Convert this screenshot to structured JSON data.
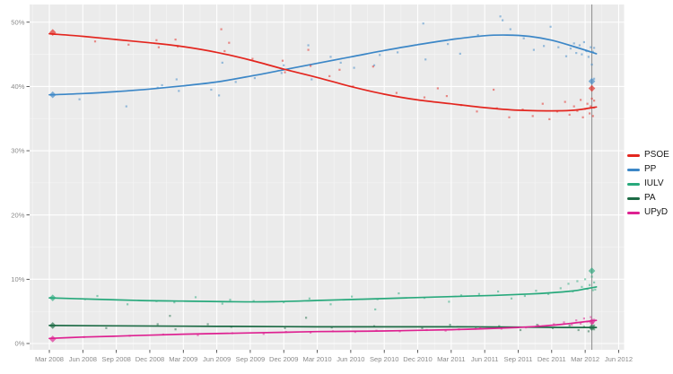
{
  "chart_data": {
    "type": "scatter",
    "smooth_trend": true,
    "title": "",
    "xlabel": "",
    "ylabel": "",
    "x_axis": {
      "tick_labels": [
        "Mar 2008",
        "Jun 2008",
        "Sep 2008",
        "Dec 2008",
        "Mar 2009",
        "Jun 2009",
        "Sep 2009",
        "Dec 2009",
        "Mar 2010",
        "Jun 2010",
        "Sep 2010",
        "Dec 2010",
        "Mar 2011",
        "Jun 2011",
        "Sep 2011",
        "Dec 2011",
        "Mar 2012",
        "Jun 2012"
      ],
      "tick_months": [
        0,
        3,
        6,
        9,
        12,
        15,
        18,
        21,
        24,
        27,
        30,
        33,
        36,
        39,
        42,
        45,
        48,
        51
      ],
      "months_per_tick": 3
    },
    "y_axis": {
      "tick_labels": [
        "0%",
        "10%",
        "20%",
        "30%",
        "40%",
        "50%"
      ],
      "tick_values": [
        0,
        10,
        20,
        30,
        40,
        50
      ],
      "ylim": [
        -1,
        52.8
      ]
    },
    "election_line_month": 48.6,
    "legend": {
      "position": "right",
      "entries": [
        {
          "label": "PSOE",
          "color": "#e3261f"
        },
        {
          "label": "PP",
          "color": "#3c87c7"
        },
        {
          "label": "IULV",
          "color": "#28a97c"
        },
        {
          "label": "PA",
          "color": "#1d6b45"
        },
        {
          "label": "UPyD",
          "color": "#de2191"
        }
      ]
    },
    "colors": {
      "panel_bg": "#ebebeb",
      "grid_major": "#ffffff",
      "grid_minor": "#ffffff",
      "tick_label": "#8a8a8a",
      "tick_mark": "#333333",
      "election_line": "#8c8c8c",
      "outer_bg": "#ffffff"
    },
    "series": [
      {
        "name": "PSOE",
        "color": "#e3261f",
        "trend": [
          [
            0,
            48.2
          ],
          [
            3,
            47.8
          ],
          [
            6,
            47.3
          ],
          [
            9,
            46.8
          ],
          [
            12,
            46.2
          ],
          [
            15,
            45.3
          ],
          [
            18,
            44.1
          ],
          [
            21,
            42.7
          ],
          [
            24,
            41.4
          ],
          [
            27,
            40.0
          ],
          [
            30,
            38.8
          ],
          [
            33,
            37.9
          ],
          [
            36,
            37.3
          ],
          [
            39,
            36.7
          ],
          [
            42,
            36.3
          ],
          [
            45,
            36.2
          ],
          [
            47,
            36.3
          ],
          [
            49,
            36.8
          ]
        ],
        "points": [
          [
            4.1,
            47.0
          ],
          [
            7.1,
            46.5
          ],
          [
            9.6,
            47.2
          ],
          [
            9.8,
            46.1
          ],
          [
            11.3,
            47.3
          ],
          [
            11.5,
            46.2
          ],
          [
            15.4,
            48.9
          ],
          [
            15.7,
            45.5
          ],
          [
            16.1,
            46.8
          ],
          [
            18.2,
            44.3
          ],
          [
            20.9,
            44.0
          ],
          [
            21.1,
            42.2
          ],
          [
            23.2,
            45.7
          ],
          [
            23.4,
            43.2
          ],
          [
            25.1,
            41.6
          ],
          [
            26.0,
            42.6
          ],
          [
            27.2,
            40.0
          ],
          [
            29.0,
            43.1
          ],
          [
            31.1,
            39.0
          ],
          [
            33.6,
            38.3
          ],
          [
            34.8,
            39.7
          ],
          [
            35.6,
            38.5
          ],
          [
            36.9,
            37.1
          ],
          [
            38.3,
            36.1
          ],
          [
            39.8,
            39.5
          ],
          [
            40.1,
            36.6
          ],
          [
            41.2,
            35.2
          ],
          [
            42.4,
            36.4
          ],
          [
            43.3,
            35.4
          ],
          [
            44.2,
            37.3
          ],
          [
            44.8,
            34.9
          ],
          [
            45.5,
            36.1
          ],
          [
            46.2,
            37.6
          ],
          [
            46.6,
            35.6
          ],
          [
            47.0,
            36.9
          ],
          [
            47.3,
            36.2
          ],
          [
            47.6,
            37.9
          ],
          [
            47.8,
            35.2
          ],
          [
            48.0,
            36.5
          ],
          [
            48.2,
            37.3
          ],
          [
            48.4,
            35.8
          ],
          [
            48.5,
            36.9
          ],
          [
            48.6,
            38.1
          ],
          [
            48.7,
            35.4
          ],
          [
            48.8,
            36.7
          ],
          [
            48.8,
            37.8
          ]
        ],
        "elections": [
          [
            0.3,
            48.4
          ],
          [
            48.6,
            39.7
          ]
        ]
      },
      {
        "name": "PP",
        "color": "#3c87c7",
        "trend": [
          [
            0,
            38.7
          ],
          [
            3,
            38.9
          ],
          [
            6,
            39.2
          ],
          [
            9,
            39.6
          ],
          [
            12,
            40.1
          ],
          [
            15,
            40.7
          ],
          [
            18,
            41.6
          ],
          [
            21,
            42.6
          ],
          [
            24,
            43.6
          ],
          [
            27,
            44.6
          ],
          [
            30,
            45.6
          ],
          [
            33,
            46.5
          ],
          [
            36,
            47.3
          ],
          [
            39,
            47.9
          ],
          [
            41,
            48.0
          ],
          [
            43,
            47.8
          ],
          [
            45,
            47.2
          ],
          [
            47,
            46.2
          ],
          [
            49,
            45.1
          ]
        ],
        "points": [
          [
            2.7,
            38.0
          ],
          [
            6.9,
            36.9
          ],
          [
            9.7,
            39.8
          ],
          [
            10.1,
            40.2
          ],
          [
            11.4,
            41.1
          ],
          [
            11.6,
            39.3
          ],
          [
            14.5,
            39.5
          ],
          [
            15.2,
            38.6
          ],
          [
            15.5,
            43.7
          ],
          [
            16.7,
            40.7
          ],
          [
            18.4,
            41.3
          ],
          [
            20.8,
            42.1
          ],
          [
            21.0,
            43.3
          ],
          [
            23.2,
            46.4
          ],
          [
            23.5,
            41.1
          ],
          [
            25.2,
            44.6
          ],
          [
            26.1,
            43.7
          ],
          [
            27.3,
            42.9
          ],
          [
            29.1,
            43.3
          ],
          [
            29.6,
            44.9
          ],
          [
            31.2,
            45.3
          ],
          [
            33.5,
            49.8
          ],
          [
            33.7,
            44.2
          ],
          [
            35.7,
            46.6
          ],
          [
            36.8,
            45.1
          ],
          [
            38.4,
            48.0
          ],
          [
            40.4,
            50.9
          ],
          [
            40.6,
            50.3
          ],
          [
            41.3,
            48.9
          ],
          [
            42.5,
            47.5
          ],
          [
            43.4,
            45.7
          ],
          [
            44.3,
            46.3
          ],
          [
            44.9,
            49.3
          ],
          [
            45.6,
            46.1
          ],
          [
            46.3,
            44.7
          ],
          [
            46.7,
            45.9
          ],
          [
            47.0,
            46.7
          ],
          [
            47.2,
            45.2
          ],
          [
            47.5,
            46.4
          ],
          [
            47.7,
            45.0
          ],
          [
            47.9,
            46.9
          ],
          [
            48.1,
            45.5
          ],
          [
            48.3,
            44.6
          ],
          [
            48.5,
            46.1
          ],
          [
            48.6,
            43.4
          ],
          [
            48.7,
            45.4
          ],
          [
            48.8,
            46.0
          ],
          [
            48.8,
            41.2
          ]
        ],
        "elections": [
          [
            0.3,
            38.7
          ],
          [
            48.6,
            40.8
          ]
        ]
      },
      {
        "name": "IULV",
        "color": "#28a97c",
        "trend": [
          [
            0,
            7.1
          ],
          [
            4,
            6.9
          ],
          [
            8,
            6.7
          ],
          [
            12,
            6.6
          ],
          [
            16,
            6.5
          ],
          [
            20,
            6.5
          ],
          [
            24,
            6.7
          ],
          [
            28,
            6.9
          ],
          [
            32,
            7.1
          ],
          [
            36,
            7.3
          ],
          [
            40,
            7.5
          ],
          [
            43,
            7.7
          ],
          [
            45,
            7.9
          ],
          [
            47,
            8.2
          ],
          [
            48,
            8.5
          ],
          [
            49,
            8.8
          ]
        ],
        "points": [
          [
            3.2,
            6.9
          ],
          [
            4.3,
            7.4
          ],
          [
            7.0,
            6.1
          ],
          [
            9.6,
            6.6
          ],
          [
            11.2,
            6.4
          ],
          [
            13.1,
            7.2
          ],
          [
            15.5,
            6.2
          ],
          [
            16.2,
            6.8
          ],
          [
            18.3,
            6.6
          ],
          [
            21.0,
            6.4
          ],
          [
            23.3,
            7.0
          ],
          [
            25.2,
            6.1
          ],
          [
            27.1,
            7.3
          ],
          [
            29.2,
            5.3
          ],
          [
            29.4,
            6.9
          ],
          [
            31.3,
            7.8
          ],
          [
            33.6,
            7.1
          ],
          [
            35.8,
            6.5
          ],
          [
            36.9,
            7.5
          ],
          [
            38.5,
            7.7
          ],
          [
            40.2,
            8.1
          ],
          [
            41.4,
            7.0
          ],
          [
            42.6,
            7.4
          ],
          [
            43.6,
            8.2
          ],
          [
            44.7,
            7.7
          ],
          [
            45.8,
            8.6
          ],
          [
            46.5,
            9.3
          ],
          [
            46.9,
            8.1
          ],
          [
            47.3,
            9.7
          ],
          [
            47.7,
            8.8
          ],
          [
            48.0,
            10.0
          ],
          [
            48.2,
            8.5
          ],
          [
            48.4,
            9.1
          ],
          [
            48.6,
            10.4
          ],
          [
            48.7,
            8.3
          ],
          [
            48.8,
            9.5
          ],
          [
            48.9,
            8.4
          ]
        ],
        "elections": [
          [
            0.3,
            7.1
          ],
          [
            48.6,
            11.3
          ]
        ]
      },
      {
        "name": "PA",
        "color": "#1d6b45",
        "trend": [
          [
            0,
            2.8
          ],
          [
            6,
            2.75
          ],
          [
            12,
            2.7
          ],
          [
            18,
            2.65
          ],
          [
            24,
            2.6
          ],
          [
            30,
            2.6
          ],
          [
            36,
            2.6
          ],
          [
            42,
            2.55
          ],
          [
            46,
            2.5
          ],
          [
            49,
            2.5
          ]
        ],
        "points": [
          [
            5.1,
            2.4
          ],
          [
            9.7,
            3.0
          ],
          [
            10.8,
            4.3
          ],
          [
            11.3,
            2.2
          ],
          [
            14.2,
            3.0
          ],
          [
            16.3,
            2.6
          ],
          [
            21.1,
            2.4
          ],
          [
            23.0,
            4.0
          ],
          [
            25.3,
            2.5
          ],
          [
            29.1,
            2.7
          ],
          [
            33.4,
            2.4
          ],
          [
            35.9,
            2.9
          ],
          [
            38.2,
            2.3
          ],
          [
            40.3,
            2.7
          ],
          [
            42.2,
            2.1
          ],
          [
            43.7,
            2.9
          ],
          [
            45.1,
            2.4
          ],
          [
            46.6,
            2.8
          ],
          [
            47.4,
            2.1
          ],
          [
            47.9,
            2.6
          ],
          [
            48.3,
            1.9
          ],
          [
            48.6,
            2.4
          ],
          [
            48.8,
            2.8
          ],
          [
            48.8,
            2.2
          ]
        ],
        "elections": [
          [
            0.3,
            2.8
          ],
          [
            48.6,
            2.5
          ]
        ]
      },
      {
        "name": "UPyD",
        "color": "#de2191",
        "trend": [
          [
            0,
            0.8
          ],
          [
            3,
            1.0
          ],
          [
            6,
            1.15
          ],
          [
            9,
            1.3
          ],
          [
            12,
            1.45
          ],
          [
            15,
            1.55
          ],
          [
            18,
            1.65
          ],
          [
            21,
            1.75
          ],
          [
            24,
            1.85
          ],
          [
            27,
            1.9
          ],
          [
            30,
            1.95
          ],
          [
            33,
            2.05
          ],
          [
            36,
            2.15
          ],
          [
            39,
            2.3
          ],
          [
            42,
            2.5
          ],
          [
            44,
            2.7
          ],
          [
            46,
            3.0
          ],
          [
            48,
            3.4
          ],
          [
            49,
            3.6
          ]
        ],
        "points": [
          [
            3.1,
            1.0
          ],
          [
            7.2,
            1.2
          ],
          [
            10.2,
            1.4
          ],
          [
            13.3,
            1.3
          ],
          [
            16.4,
            1.6
          ],
          [
            19.2,
            1.5
          ],
          [
            21.2,
            1.8
          ],
          [
            23.4,
            1.7
          ],
          [
            25.4,
            1.9
          ],
          [
            27.4,
            1.8
          ],
          [
            29.3,
            2.0
          ],
          [
            31.4,
            1.9
          ],
          [
            33.8,
            2.1
          ],
          [
            35.5,
            2.0
          ],
          [
            36.7,
            2.2
          ],
          [
            38.6,
            2.4
          ],
          [
            40.5,
            2.3
          ],
          [
            42.7,
            2.5
          ],
          [
            43.8,
            2.8
          ],
          [
            45.2,
            3.0
          ],
          [
            46.1,
            3.3
          ],
          [
            46.8,
            2.9
          ],
          [
            47.2,
            3.6
          ],
          [
            47.6,
            3.1
          ],
          [
            47.9,
            3.9
          ],
          [
            48.2,
            3.4
          ],
          [
            48.5,
            4.1
          ],
          [
            48.7,
            3.2
          ],
          [
            48.8,
            3.7
          ]
        ],
        "elections": [
          [
            0.3,
            0.7
          ],
          [
            48.6,
            3.4
          ]
        ]
      }
    ]
  }
}
